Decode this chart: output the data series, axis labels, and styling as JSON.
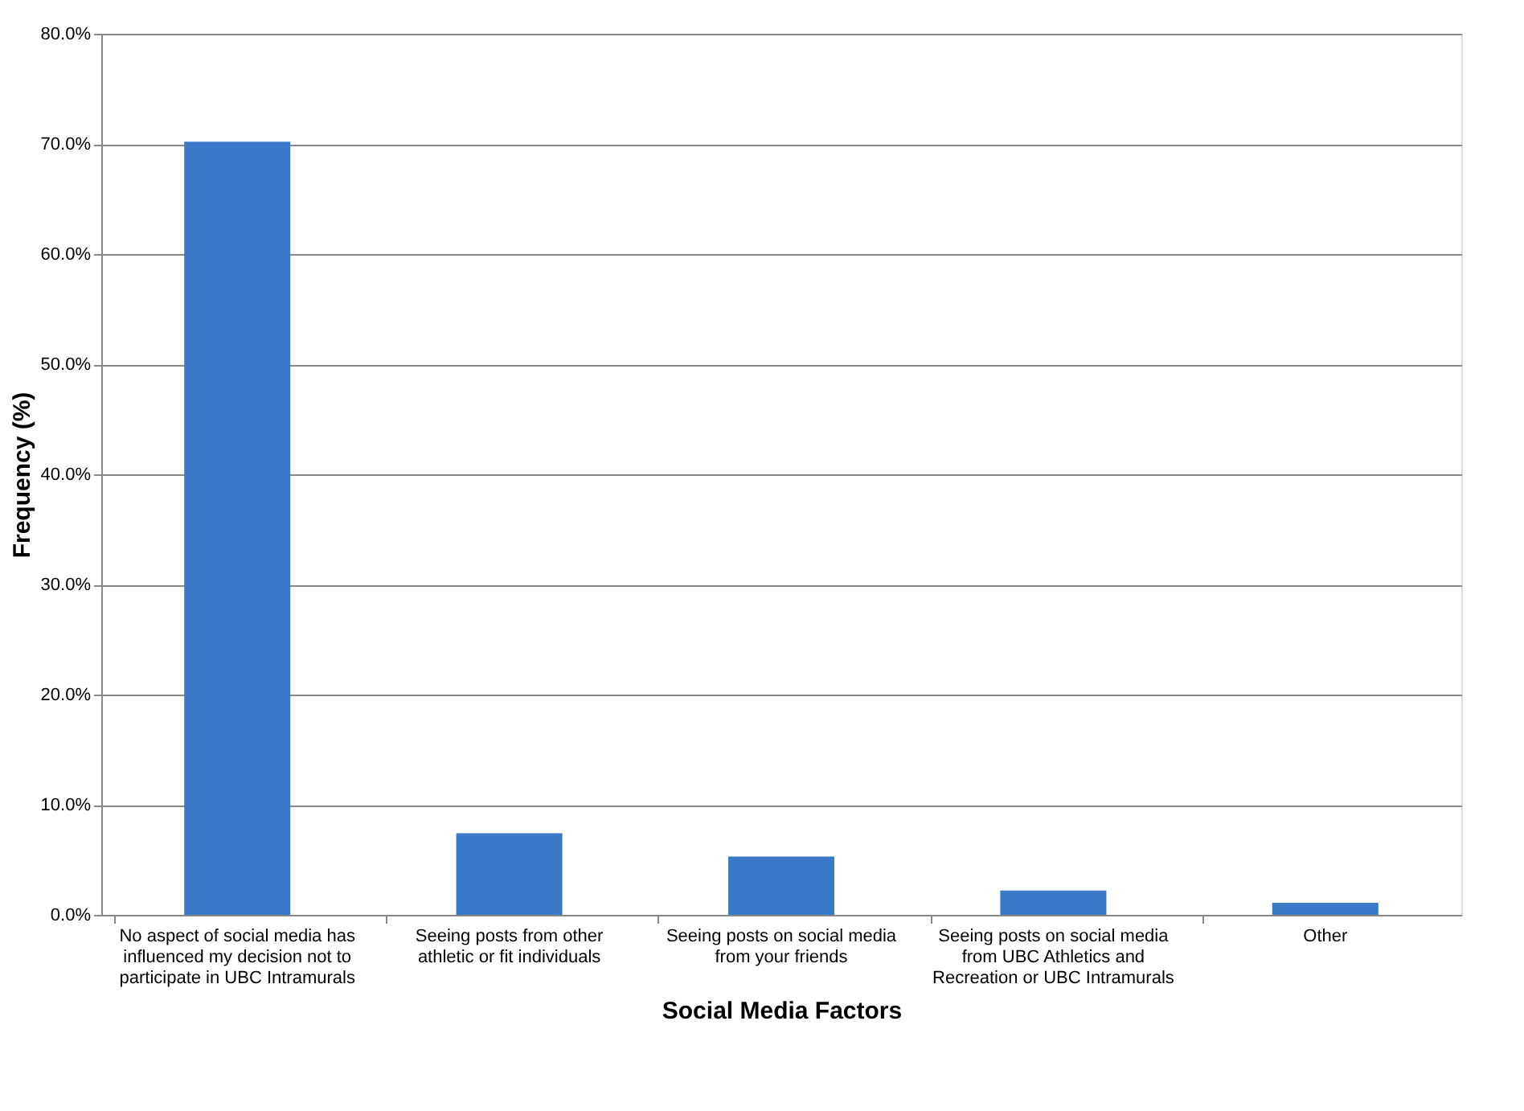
{
  "chart_data": {
    "type": "bar",
    "xlabel": "Social Media Factors",
    "ylabel": "Frequency (%)",
    "categories": [
      "No aspect of social media has influenced my decision not to participate in UBC Intramurals",
      "Seeing posts from other athletic or fit individuals",
      "Seeing posts on social media from your friends",
      "Seeing posts on social media from UBC Athletics and Recreation or UBC Intramurals",
      "Other"
    ],
    "values": [
      70.2,
      7.4,
      5.3,
      2.2,
      1.1
    ],
    "color": "#3a78c8",
    "ylim": [
      0,
      80
    ],
    "yticks": [
      {
        "value": 0,
        "label": "0.0%"
      },
      {
        "value": 10,
        "label": "10.0%"
      },
      {
        "value": 20,
        "label": "20.0%"
      },
      {
        "value": 30,
        "label": "30.0%"
      },
      {
        "value": 40,
        "label": "40.0%"
      },
      {
        "value": 50,
        "label": "50.0%"
      },
      {
        "value": 60,
        "label": "60.0%"
      },
      {
        "value": 70,
        "label": "70.0%"
      },
      {
        "value": 80,
        "label": "80.0%"
      }
    ],
    "grid": "y"
  }
}
